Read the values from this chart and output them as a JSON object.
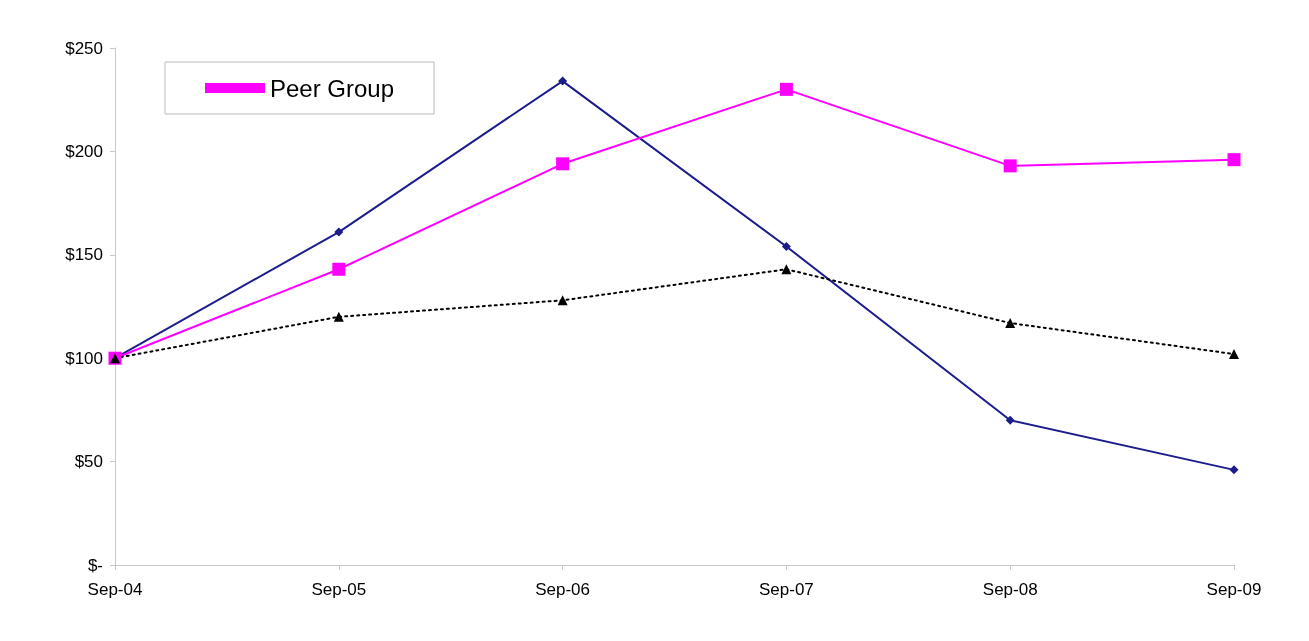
{
  "chart_data": {
    "type": "line",
    "categories": [
      "Sep-04",
      "Sep-05",
      "Sep-06",
      "Sep-07",
      "Sep-08",
      "Sep-09"
    ],
    "series": [
      {
        "color": "#1c1c8c",
        "marker": "diamond",
        "line_style": "solid",
        "values": [
          100,
          161,
          234,
          154,
          70,
          46
        ]
      },
      {
        "name": "Peer Group",
        "color": "#ff00ff",
        "marker": "square",
        "line_style": "solid",
        "values": [
          100,
          143,
          194,
          230,
          193,
          196
        ]
      },
      {
        "color": "#000000",
        "marker": "triangle",
        "line_style": "dotted",
        "values": [
          100,
          120,
          128,
          143,
          117,
          102
        ]
      }
    ],
    "ylim": [
      0,
      250
    ],
    "yticks": [
      {
        "value": 0,
        "label": "$-"
      },
      {
        "value": 50,
        "label": "$50"
      },
      {
        "value": 100,
        "label": "$100"
      },
      {
        "value": 150,
        "label": "$150"
      },
      {
        "value": 200,
        "label": "$200"
      },
      {
        "value": 250,
        "label": "$250"
      }
    ],
    "grid": false,
    "legend": "top left"
  }
}
